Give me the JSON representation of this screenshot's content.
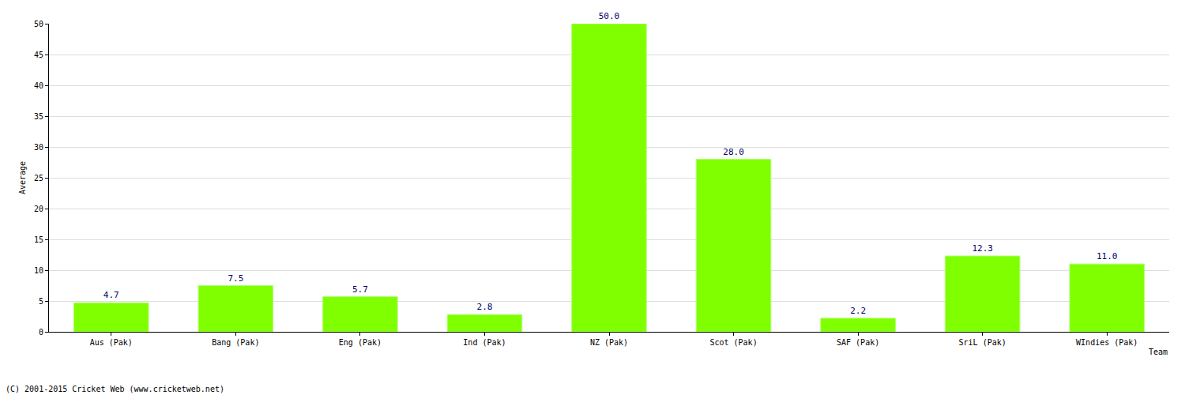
{
  "chart_data": {
    "type": "bar",
    "x_label": "Team",
    "y_label": "Average",
    "categories": [
      "Aus (Pak)",
      "Bang (Pak)",
      "Eng (Pak)",
      "Ind (Pak)",
      "NZ (Pak)",
      "Scot (Pak)",
      "SAF (Pak)",
      "SriL (Pak)",
      "WIndies (Pak)"
    ],
    "values": [
      4.7,
      7.5,
      5.7,
      2.8,
      50.0,
      28.0,
      2.2,
      12.3,
      11.0
    ],
    "value_labels": [
      "4.7",
      "7.5",
      "5.7",
      "2.8",
      "50.0",
      "28.0",
      "2.2",
      "12.3",
      "11.0"
    ],
    "color": "#7fff00",
    "ylim": [
      0,
      50
    ],
    "yticks": [
      0,
      5,
      10,
      15,
      20,
      25,
      30,
      35,
      40,
      45,
      50
    ],
    "grid": true,
    "data_labels": true,
    "annotations": [
      "(C) 2001-2015 Cricket Web (www.cricketweb.net)"
    ]
  }
}
